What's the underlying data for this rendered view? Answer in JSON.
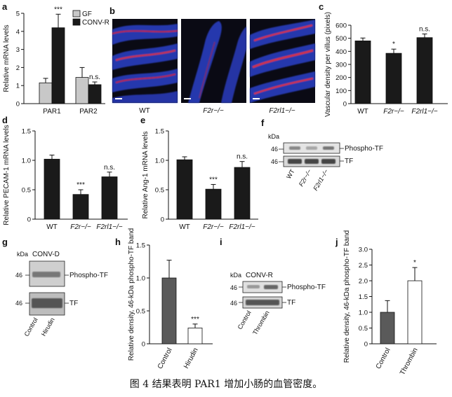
{
  "caption": "图 4 结果表明 PAR1 增加小肠的血管密度。",
  "panels": {
    "b": {
      "letter": "b",
      "labels": [
        "WT",
        "F2r−/−",
        "F2rl1−/−"
      ]
    },
    "f": {
      "letter": "f",
      "kda": "kDa",
      "marker": "46",
      "band_labels": [
        "Phospho-TF",
        "TF"
      ],
      "lanes": [
        "WT",
        "F2r−/−",
        "F2rl1−/−"
      ]
    },
    "g": {
      "letter": "g",
      "kda": "kDa",
      "header": "CONV-D",
      "marker": "46",
      "band_labels": [
        "Phospho-TF",
        "TF"
      ],
      "lanes": [
        "Control",
        "Hirudin"
      ]
    },
    "i": {
      "letter": "i",
      "kda": "kDa",
      "header": "CONV-R",
      "marker": "46",
      "band_labels": [
        "Phospho-TF",
        "TF"
      ],
      "lanes": [
        "Control",
        "Thrombin"
      ]
    }
  },
  "chart_data": [
    {
      "id": "a",
      "letter": "a",
      "type": "bar",
      "ylabel": "Relative mRNA levels",
      "ylim": [
        0,
        5
      ],
      "yticks": [
        0,
        1,
        2,
        3,
        4,
        5
      ],
      "categories": [
        "PAR1",
        "PAR2"
      ],
      "legend": "top-left",
      "series": [
        {
          "name": "GF",
          "color": "#c8c8c8",
          "values": [
            1.15,
            1.45
          ],
          "errors": [
            0.25,
            0.55
          ]
        },
        {
          "name": "CONV-R",
          "color": "#1a1a1a",
          "values": [
            4.2,
            1.05
          ],
          "errors": [
            0.75,
            0.15
          ]
        }
      ],
      "annotations": [
        {
          "category": 0,
          "series": 1,
          "text": "***"
        },
        {
          "category": 1,
          "series": 1,
          "text": "n.s."
        }
      ]
    },
    {
      "id": "c",
      "letter": "c",
      "type": "bar",
      "ylabel": "Vascular density per villus (pixels)",
      "ylim": [
        0,
        600
      ],
      "yticks": [
        0,
        100,
        200,
        300,
        400,
        500,
        600
      ],
      "categories": [
        "WT",
        "F2r−/−",
        "F2rl1−/−"
      ],
      "italic_categories": [
        false,
        true,
        true
      ],
      "series": [
        {
          "color": "#1a1a1a",
          "values": [
            480,
            385,
            505
          ],
          "errors": [
            22,
            32,
            28
          ]
        }
      ],
      "annotations": [
        {
          "category": 1,
          "series": 0,
          "text": "*"
        },
        {
          "category": 2,
          "series": 0,
          "text": "n.s."
        }
      ]
    },
    {
      "id": "d",
      "letter": "d",
      "type": "bar",
      "ylabel": "Relative PECAM-1 mRNA levels",
      "ylim": [
        0,
        1.5
      ],
      "yticks": [
        0,
        0.5,
        1.0,
        1.5
      ],
      "ytick_labels": [
        "0",
        "0.5",
        "1.0",
        "1.5"
      ],
      "categories": [
        "WT",
        "F2r−/−",
        "F2rl1−/−"
      ],
      "italic_categories": [
        false,
        true,
        true
      ],
      "series": [
        {
          "color": "#1a1a1a",
          "values": [
            1.02,
            0.42,
            0.72
          ],
          "errors": [
            0.07,
            0.08,
            0.08
          ]
        }
      ],
      "annotations": [
        {
          "category": 1,
          "series": 0,
          "text": "***"
        },
        {
          "category": 2,
          "series": 0,
          "text": "n.s."
        }
      ]
    },
    {
      "id": "e",
      "letter": "e",
      "type": "bar",
      "ylabel": "Relative Ang-1 mRNA levels",
      "ylim": [
        0,
        1.5
      ],
      "yticks": [
        0,
        0.5,
        1.0,
        1.5
      ],
      "ytick_labels": [
        "0",
        "0.5",
        "1.0",
        "1.5"
      ],
      "categories": [
        "WT",
        "F2r−/−",
        "F2rl1−/−"
      ],
      "italic_categories": [
        false,
        true,
        true
      ],
      "series": [
        {
          "color": "#1a1a1a",
          "values": [
            1.01,
            0.51,
            0.88
          ],
          "errors": [
            0.05,
            0.08,
            0.1
          ]
        }
      ],
      "annotations": [
        {
          "category": 1,
          "series": 0,
          "text": "***"
        },
        {
          "category": 2,
          "series": 0,
          "text": "n.s."
        }
      ]
    },
    {
      "id": "h",
      "letter": "h",
      "type": "bar",
      "ylabel": "Relative density, 46-kDa phospho-TF band",
      "ylim": [
        0,
        1.5
      ],
      "yticks": [
        0,
        0.5,
        1.0,
        1.5
      ],
      "ytick_labels": [
        "0",
        "0.5",
        "1.0",
        "1.5"
      ],
      "categories": [
        "Control",
        "Hirudin"
      ],
      "rotate_categories": true,
      "series": [
        {
          "color": "#5a5a5a",
          "values": [
            1.0,
            0.24
          ],
          "errors": [
            0.27,
            0.06
          ],
          "point_colors": [
            "#5a5a5a",
            "#ffffff"
          ]
        }
      ],
      "annotations": [
        {
          "category": 1,
          "series": 0,
          "text": "***"
        }
      ]
    },
    {
      "id": "j",
      "letter": "j",
      "type": "bar",
      "ylabel": "Relative density, 46-kDa phospho-TF band",
      "ylim": [
        0,
        3.0
      ],
      "yticks": [
        0,
        0.5,
        1.0,
        1.5,
        2.0,
        2.5,
        3.0
      ],
      "ytick_labels": [
        "0",
        "0.5",
        "1.0",
        "1.5",
        "2.0",
        "2.5",
        "3.0"
      ],
      "categories": [
        "Control",
        "Thrombin"
      ],
      "rotate_categories": true,
      "series": [
        {
          "color": "#5a5a5a",
          "values": [
            1.0,
            2.0
          ],
          "errors": [
            0.37,
            0.42
          ],
          "point_colors": [
            "#5a5a5a",
            "#ffffff"
          ]
        }
      ],
      "annotations": [
        {
          "category": 1,
          "series": 0,
          "text": "*"
        }
      ]
    }
  ]
}
